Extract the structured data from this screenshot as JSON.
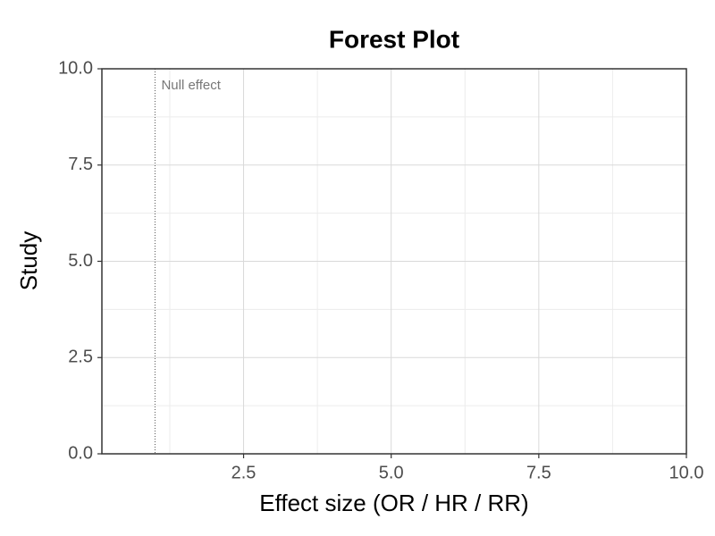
{
  "chart_data": {
    "type": "forest",
    "title": "Forest Plot",
    "xlabel": "Effect size (OR / HR / RR)",
    "ylabel": "Study",
    "series": [],
    "xlim": [
      0.1,
      10
    ],
    "xticks": [
      2.5,
      {
        "value": 5,
        "label": "5.0"
      },
      7.5,
      {
        "value": 10,
        "label": "10.0"
      }
    ],
    "minor_xticks": [
      1.25,
      3.75,
      6.25,
      8.75
    ],
    "ylim": [
      0,
      10
    ],
    "yticks": [
      {
        "value": 0,
        "label": "0.0"
      },
      2.5,
      {
        "value": 5,
        "label": "5.0"
      },
      7.5,
      {
        "value": 10,
        "label": "10.0"
      }
    ],
    "minor_yticks": [
      1.25,
      3.75,
      6.25,
      8.75
    ],
    "grid": true,
    "null_line": {
      "value": 1,
      "label": "Null effect"
    }
  }
}
